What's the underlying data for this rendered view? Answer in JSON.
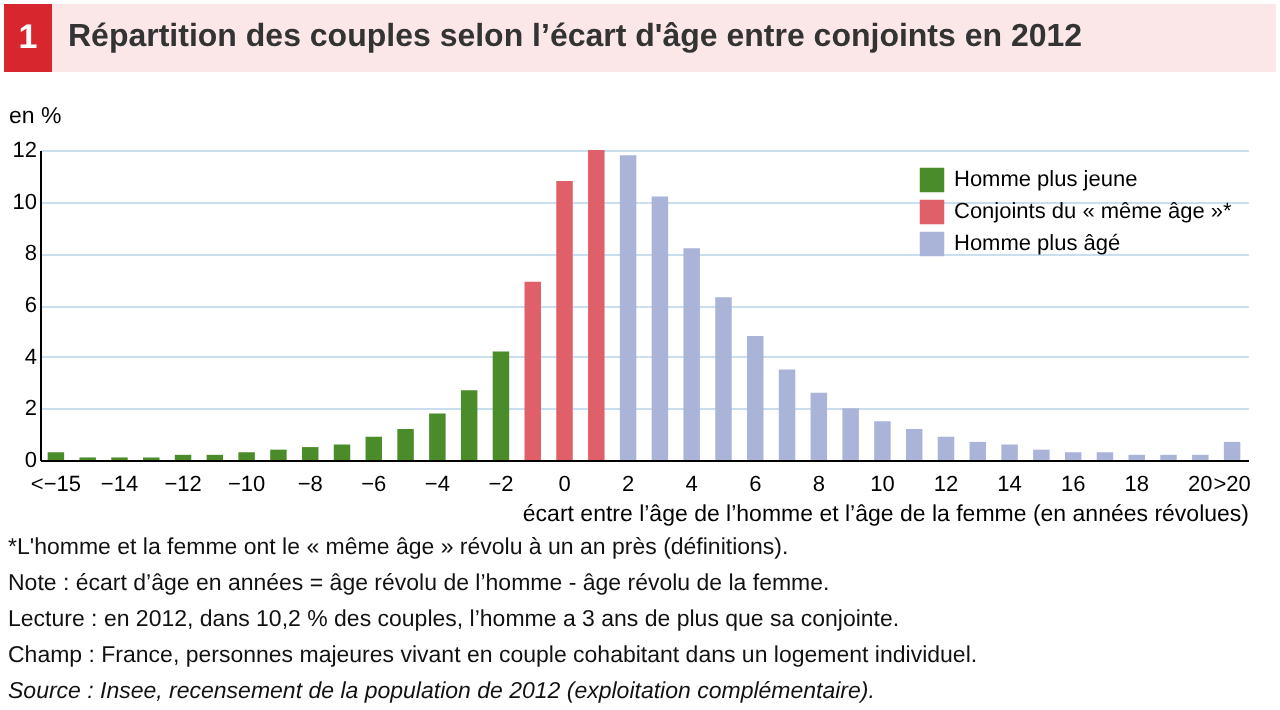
{
  "chart_data": {
    "type": "bar",
    "title": "Répartition des couples selon l’écart d'âge entre conjoints en 2012",
    "ylabel": "en %",
    "xlabel": "écart entre l’âge de l’homme et l’âge de la femme (en années révolues)",
    "categories": [
      "<−15",
      null,
      "−14",
      null,
      "−12",
      null,
      "−10",
      null,
      "−8",
      null,
      "−6",
      null,
      "−4",
      null,
      "−2",
      null,
      "0",
      null,
      "2",
      null,
      "4",
      null,
      "6",
      null,
      "8",
      null,
      "10",
      null,
      "12",
      null,
      "14",
      null,
      "16",
      null,
      "18",
      null,
      "20",
      ">20"
    ],
    "series": [
      {
        "name": "Homme plus jeune",
        "color": "#4a8c2a",
        "values": [
          0.3,
          0.1,
          0.1,
          0.1,
          0.2,
          0.2,
          0.3,
          0.4,
          0.5,
          0.6,
          0.9,
          1.2,
          1.8,
          2.7,
          4.2,
          null,
          null,
          null,
          null,
          null,
          null,
          null,
          null,
          null,
          null,
          null,
          null,
          null,
          null,
          null,
          null,
          null,
          null,
          null,
          null,
          null,
          null,
          null
        ]
      },
      {
        "name": "Conjoints du « même âge »*",
        "color": "#e0606a",
        "values": [
          null,
          null,
          null,
          null,
          null,
          null,
          null,
          null,
          null,
          null,
          null,
          null,
          null,
          null,
          null,
          6.9,
          10.8,
          12.0,
          null,
          null,
          null,
          null,
          null,
          null,
          null,
          null,
          null,
          null,
          null,
          null,
          null,
          null,
          null,
          null,
          null,
          null,
          null,
          null
        ]
      },
      {
        "name": "Homme plus âgé",
        "color": "#aab4d8",
        "values": [
          null,
          null,
          null,
          null,
          null,
          null,
          null,
          null,
          null,
          null,
          null,
          null,
          null,
          null,
          null,
          null,
          null,
          null,
          11.8,
          10.2,
          8.2,
          6.3,
          4.8,
          3.5,
          2.6,
          2.0,
          1.5,
          1.2,
          0.9,
          0.7,
          0.6,
          0.4,
          0.3,
          0.3,
          0.2,
          0.2,
          0.2,
          0.7
        ]
      }
    ],
    "ylim": [
      0,
      12
    ],
    "yticks": [
      0,
      2,
      4,
      6,
      8,
      10,
      12
    ],
    "grid": "y",
    "legend": "top right",
    "annotations": [
      "1",
      "*L'homme et la femme ont le « même âge » révolu à un an près (définitions).",
      "Note : écart d’âge en années = âge révolu de l’homme - âge révolu de la femme.",
      "Lecture : en 2012, dans 10,2 % des couples, l’homme a 3 ans de plus que sa conjointe.",
      "Champ : France, personnes majeures vivant en couple cohabitant dans un logement individuel.",
      "Source : Insee, recensement de la population de 2012 (exploitation complémentaire)."
    ]
  }
}
